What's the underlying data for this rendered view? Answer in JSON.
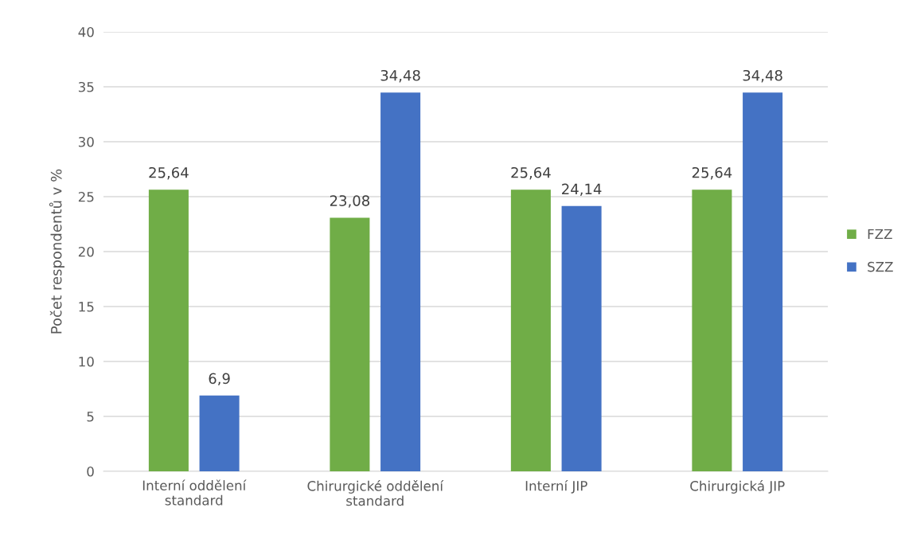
{
  "chart_data": {
    "type": "bar",
    "ylabel": "Počet respondentů v %",
    "categories": [
      "Interní oddělení\nstandard",
      "Chirurgické oddělení\nstandard",
      "Interní JIP",
      "Chirurgická JIP"
    ],
    "series": [
      {
        "name": "FZZ",
        "color": "#70ad47",
        "values": [
          25.64,
          23.08,
          25.64,
          25.64
        ],
        "value_labels": [
          "25,64",
          "23,08",
          "25,64",
          "25,64"
        ]
      },
      {
        "name": "SZZ",
        "color": "#4472c4",
        "values": [
          6.9,
          34.48,
          24.14,
          34.48
        ],
        "value_labels": [
          "6,9",
          "34,48",
          "24,14",
          "34,48"
        ]
      }
    ],
    "ylim": [
      0,
      40
    ],
    "yticks": [
      0,
      5,
      10,
      15,
      20,
      25,
      30,
      35,
      40
    ],
    "grid": "y",
    "legend": "right"
  }
}
